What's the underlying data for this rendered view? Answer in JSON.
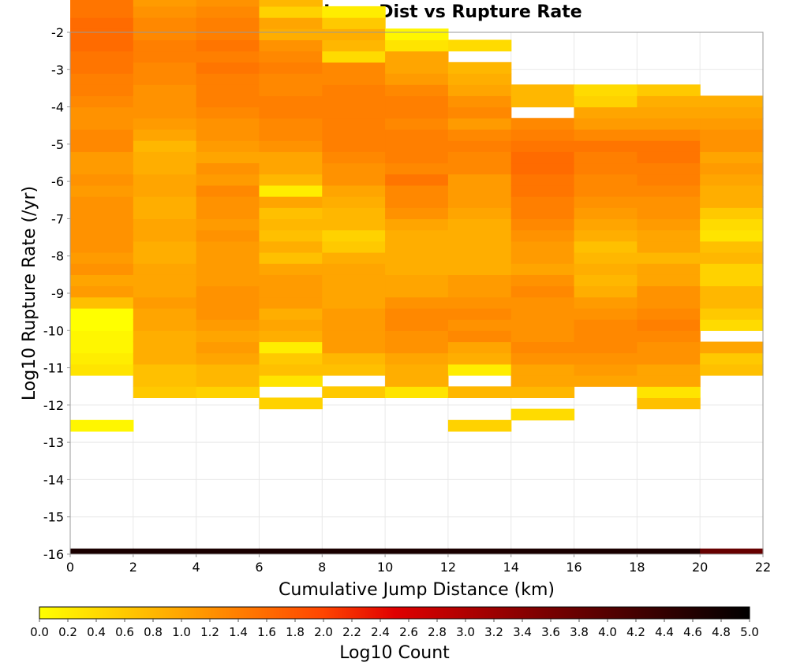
{
  "chart_data": {
    "type": "heatmap",
    "title": "Cumulative Jump Dist vs Rupture Rate",
    "xlabel": "Cumulative Jump Distance (km)",
    "ylabel": "Log10 Rupture Rate (/yr)",
    "colorbar_label": "Log10 Count",
    "xlim": [
      0,
      22
    ],
    "ylim": [
      -16,
      -2
    ],
    "x_ticks": [
      0,
      2,
      4,
      6,
      8,
      10,
      12,
      14,
      16,
      18,
      20,
      22
    ],
    "y_ticks": [
      -2,
      -3,
      -4,
      -5,
      -6,
      -7,
      -8,
      -9,
      -10,
      -11,
      -12,
      -13,
      -14,
      -15,
      -16
    ],
    "colorbar_range": [
      0,
      5
    ],
    "colorbar_ticks": [
      "0.0",
      "0.2",
      "0.4",
      "0.6",
      "0.8",
      "1.0",
      "1.2",
      "1.4",
      "1.6",
      "1.8",
      "2.0",
      "2.2",
      "2.4",
      "2.6",
      "2.8",
      "3.0",
      "3.2",
      "3.4",
      "3.6",
      "3.8",
      "4.0",
      "4.2",
      "4.4",
      "4.6",
      "4.8",
      "5.0"
    ],
    "colormap": [
      "#ffff00",
      "#ffa500",
      "#ff4500",
      "#e00000",
      "#800000",
      "#000000"
    ],
    "grid": true,
    "x_bin_width": 2,
    "y_bin_height": 0.3,
    "y_bin_start": -16,
    "columns": [
      {
        "x_start": 0,
        "y_start_bin": 11,
        "values": [
          0.1,
          null,
          null,
          null,
          null,
          0.3,
          0.2,
          0.1,
          0.1,
          0.0,
          0.0,
          0.7,
          1.1,
          1.0,
          1.2,
          1.1,
          1.2,
          1.2,
          1.2,
          1.2,
          1.2,
          1.1,
          1.2,
          1.1,
          1.1,
          1.3,
          1.3,
          1.2,
          1.2,
          1.3,
          1.4,
          1.4,
          1.5,
          1.5,
          1.6,
          1.6,
          1.6,
          1.5,
          1.5,
          1.4,
          1.3,
          1.0,
          0.9,
          0.6,
          0.4,
          0.1
        ]
      },
      {
        "x_start": 2,
        "y_start_bin": 14,
        "values": [
          0.6,
          0.7,
          0.7,
          0.9,
          0.9,
          0.9,
          1.0,
          1.0,
          1.1,
          1.0,
          1.0,
          1.0,
          0.9,
          0.9,
          1.0,
          1.0,
          0.9,
          0.9,
          1.0,
          1.0,
          0.9,
          0.9,
          0.8,
          1.0,
          1.1,
          1.2,
          1.2,
          1.2,
          1.3,
          1.3,
          1.4,
          1.4,
          1.3,
          1.3,
          1.2,
          1.1,
          1.0,
          0.9,
          0.9,
          0.6,
          0.2
        ]
      },
      {
        "x_start": 4,
        "y_start_bin": 14,
        "values": [
          0.5,
          0.8,
          0.8,
          1.0,
          1.1,
          1.0,
          1.1,
          1.2,
          1.2,
          1.2,
          1.1,
          1.1,
          1.1,
          1.1,
          1.2,
          1.1,
          1.2,
          1.2,
          1.3,
          1.1,
          1.2,
          1.0,
          1.1,
          1.2,
          1.2,
          1.3,
          1.4,
          1.4,
          1.4,
          1.5,
          1.4,
          1.5,
          1.4,
          1.4,
          1.3,
          1.2,
          1.3,
          1.2,
          0.8,
          0.7,
          0.5
        ]
      },
      {
        "x_start": 6,
        "y_start_bin": 13,
        "values": [
          0.5,
          null,
          0.3,
          0.7,
          0.6,
          0.2,
          0.9,
          1.0,
          0.9,
          1.1,
          1.1,
          1.1,
          1.0,
          0.7,
          0.9,
          0.7,
          0.8,
          0.7,
          1.0,
          0.2,
          0.8,
          1.0,
          1.0,
          1.2,
          1.3,
          1.3,
          1.4,
          1.4,
          1.3,
          1.3,
          1.4,
          1.3,
          1.2,
          0.9,
          1.0,
          0.5,
          0.8,
          0.7
        ]
      },
      {
        "x_start": 8,
        "y_start_bin": 14,
        "values": [
          0.6,
          null,
          0.7,
          0.8,
          1.1,
          1.1,
          1.1,
          1.1,
          1.0,
          1.0,
          1.0,
          1.0,
          0.9,
          0.6,
          0.5,
          0.8,
          0.8,
          0.9,
          1.0,
          1.2,
          1.2,
          1.3,
          1.4,
          1.4,
          1.4,
          1.4,
          1.4,
          1.4,
          1.3,
          1.3,
          0.4,
          0.8,
          0.9,
          0.6,
          0.2
        ]
      },
      {
        "x_start": 10,
        "y_start_bin": 14,
        "values": [
          0.3,
          0.9,
          0.9,
          1.0,
          1.2,
          1.2,
          1.3,
          1.3,
          1.2,
          1.0,
          1.0,
          0.9,
          0.9,
          0.9,
          0.9,
          1.0,
          1.2,
          1.3,
          1.3,
          1.5,
          1.3,
          1.4,
          1.4,
          1.4,
          1.3,
          1.4,
          1.4,
          1.3,
          1.1,
          1.0,
          1.0,
          0.3,
          0.1
        ]
      },
      {
        "x_start": 12,
        "y_start_bin": 11,
        "values": [
          0.5,
          null,
          null,
          0.8,
          null,
          0.2,
          0.9,
          1.0,
          1.3,
          1.2,
          1.3,
          1.2,
          1.1,
          1.1,
          0.9,
          0.9,
          0.9,
          0.9,
          0.9,
          1.0,
          1.1,
          1.1,
          1.1,
          1.3,
          1.3,
          1.4,
          1.3,
          1.1,
          1.3,
          1.2,
          1.0,
          0.9,
          0.8,
          null,
          0.4
        ]
      },
      {
        "x_start": 14,
        "y_start_bin": 12,
        "values": [
          0.4,
          null,
          0.8,
          1.0,
          1.0,
          1.2,
          1.3,
          1.2,
          1.2,
          1.2,
          1.2,
          1.3,
          1.2,
          1.0,
          1.1,
          1.1,
          1.2,
          1.3,
          1.4,
          1.4,
          1.5,
          1.5,
          1.6,
          1.6,
          1.5,
          1.4,
          1.3,
          null,
          0.8,
          0.8
        ]
      },
      {
        "x_start": 16,
        "y_start_bin": 15,
        "values": [
          1.0,
          1.1,
          1.2,
          1.3,
          1.3,
          1.3,
          1.2,
          1.1,
          0.9,
          0.8,
          0.9,
          0.8,
          0.7,
          0.9,
          1.0,
          1.1,
          1.2,
          1.3,
          1.3,
          1.4,
          1.4,
          1.5,
          1.3,
          1.1,
          1.0,
          0.5,
          0.4
        ]
      },
      {
        "x_start": 18,
        "y_start_bin": 13,
        "values": [
          0.7,
          0.3,
          1.0,
          1.0,
          1.2,
          1.2,
          1.3,
          1.4,
          1.3,
          1.2,
          1.2,
          1.0,
          1.0,
          0.8,
          1.0,
          1.0,
          1.1,
          1.2,
          1.2,
          1.3,
          1.4,
          1.4,
          1.5,
          1.5,
          1.3,
          1.1,
          1.0,
          0.9,
          0.6
        ]
      },
      {
        "x_start": 20,
        "y_start_bin": 16,
        "values": [
          0.7,
          0.6,
          1.0,
          null,
          0.4,
          0.6,
          0.8,
          0.8,
          0.5,
          0.5,
          0.8,
          0.7,
          0.3,
          0.4,
          0.6,
          0.9,
          0.9,
          1.0,
          1.1,
          1.0,
          1.2,
          1.2,
          1.1,
          1.0,
          0.9
        ]
      }
    ],
    "bottom_row": {
      "y_start": -16.0,
      "y_end": -15.85,
      "values": [
        4.7,
        4.7,
        4.7,
        4.7,
        4.7,
        4.7,
        4.7,
        4.7,
        4.7,
        4.7,
        3.8
      ]
    }
  }
}
